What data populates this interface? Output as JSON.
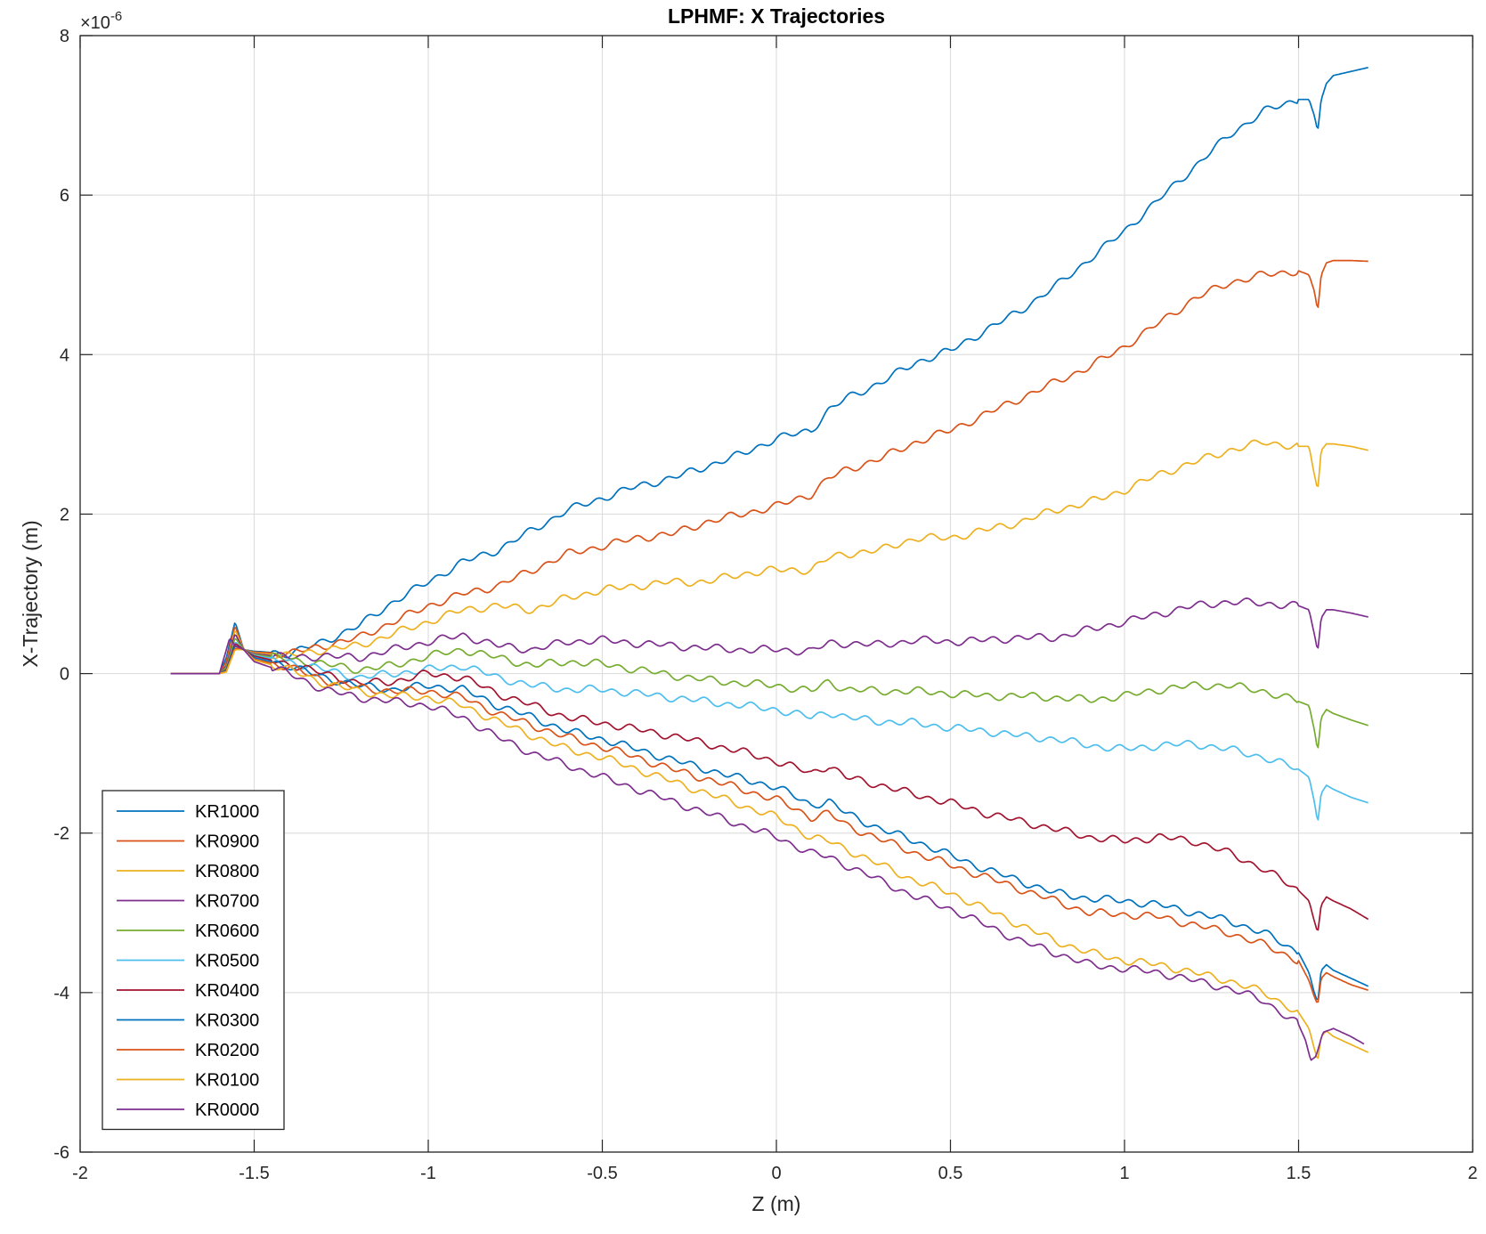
{
  "chart_data": {
    "type": "line",
    "title": "LPHMF: X Trajectories",
    "xlabel": "Z (m)",
    "ylabel": "X-Trajectory (m)",
    "y_exponent_base": "×10",
    "y_exponent_power": "-6",
    "xlim": [
      -2,
      2
    ],
    "ylim": [
      -6,
      8
    ],
    "x_ticks": [
      "-2",
      "-1.5",
      "-1",
      "-0.5",
      "0",
      "0.5",
      "1",
      "1.5",
      "2"
    ],
    "y_ticks": [
      "-6",
      "-4",
      "-2",
      "0",
      "2",
      "4",
      "6",
      "8"
    ],
    "grid": true,
    "legend_position": "bottom-left",
    "series": [
      {
        "name": "KR1000",
        "color": "#0072BD",
        "x": [
          -1.74,
          -1.6,
          -1.58,
          -1.555,
          -1.53,
          -1.5,
          -1.4,
          -1.3,
          -1.2,
          -1.1,
          -1.0,
          -0.9,
          -0.8,
          -0.7,
          -0.6,
          -0.5,
          -0.4,
          -0.3,
          -0.2,
          -0.1,
          0.0,
          0.1,
          0.15,
          0.2,
          0.3,
          0.4,
          0.5,
          0.6,
          0.7,
          0.8,
          0.9,
          1.0,
          1.1,
          1.2,
          1.3,
          1.4,
          1.5,
          1.53,
          1.545,
          1.555,
          1.565,
          1.58,
          1.6,
          1.65,
          1.7
        ],
        "y": [
          0,
          0,
          0.2,
          0.65,
          0.3,
          0.28,
          0.25,
          0.4,
          0.6,
          0.9,
          1.15,
          1.4,
          1.55,
          1.8,
          2.05,
          2.2,
          2.35,
          2.45,
          2.6,
          2.75,
          2.95,
          3.05,
          3.3,
          3.45,
          3.65,
          3.9,
          4.05,
          4.3,
          4.55,
          4.85,
          5.2,
          5.55,
          5.95,
          6.35,
          6.75,
          7.05,
          7.2,
          7.2,
          7.0,
          6.8,
          7.2,
          7.4,
          7.5,
          7.55,
          7.6
        ]
      },
      {
        "name": "KR0900",
        "color": "#D95319",
        "x": [
          -1.74,
          -1.6,
          -1.58,
          -1.555,
          -1.53,
          -1.5,
          -1.4,
          -1.3,
          -1.2,
          -1.1,
          -1.0,
          -0.9,
          -0.8,
          -0.7,
          -0.6,
          -0.5,
          -0.4,
          -0.3,
          -0.2,
          -0.1,
          0.0,
          0.1,
          0.15,
          0.2,
          0.3,
          0.4,
          0.5,
          0.6,
          0.7,
          0.8,
          0.9,
          1.0,
          1.1,
          1.2,
          1.3,
          1.4,
          1.5,
          1.53,
          1.545,
          1.555,
          1.565,
          1.58,
          1.6,
          1.65,
          1.7
        ],
        "y": [
          0,
          0,
          0.15,
          0.6,
          0.3,
          0.27,
          0.25,
          0.35,
          0.45,
          0.65,
          0.85,
          1.0,
          1.1,
          1.3,
          1.5,
          1.6,
          1.7,
          1.75,
          1.9,
          2.0,
          2.1,
          2.25,
          2.45,
          2.55,
          2.7,
          2.9,
          3.05,
          3.25,
          3.45,
          3.65,
          3.85,
          4.1,
          4.4,
          4.7,
          4.9,
          5.0,
          5.05,
          5.0,
          4.8,
          4.55,
          5.0,
          5.15,
          5.18,
          5.18,
          5.17
        ]
      },
      {
        "name": "KR0800",
        "color": "#EDB120",
        "x": [
          -1.74,
          -1.6,
          -1.58,
          -1.555,
          -1.53,
          -1.5,
          -1.4,
          -1.3,
          -1.2,
          -1.1,
          -1.0,
          -0.9,
          -0.8,
          -0.7,
          -0.6,
          -0.5,
          -0.4,
          -0.3,
          -0.2,
          -0.1,
          0.0,
          0.1,
          0.15,
          0.2,
          0.3,
          0.4,
          0.5,
          0.6,
          0.7,
          0.8,
          0.9,
          1.0,
          1.1,
          1.2,
          1.3,
          1.4,
          1.5,
          1.53,
          1.545,
          1.555,
          1.565,
          1.58,
          1.6,
          1.65,
          1.7
        ],
        "y": [
          0,
          0,
          0.1,
          0.55,
          0.3,
          0.26,
          0.22,
          0.3,
          0.35,
          0.5,
          0.65,
          0.8,
          0.85,
          0.8,
          0.95,
          1.05,
          1.1,
          1.15,
          1.15,
          1.25,
          1.3,
          1.3,
          1.45,
          1.5,
          1.55,
          1.7,
          1.7,
          1.8,
          1.9,
          2.05,
          2.15,
          2.3,
          2.5,
          2.65,
          2.8,
          2.9,
          2.85,
          2.85,
          2.5,
          2.3,
          2.8,
          2.88,
          2.88,
          2.85,
          2.8
        ]
      },
      {
        "name": "KR0700",
        "color": "#7E2F8E",
        "x": [
          -1.74,
          -1.6,
          -1.58,
          -1.555,
          -1.53,
          -1.5,
          -1.4,
          -1.3,
          -1.2,
          -1.1,
          -1.0,
          -0.9,
          -0.8,
          -0.7,
          -0.6,
          -0.5,
          -0.4,
          -0.3,
          -0.2,
          -0.1,
          0.0,
          0.1,
          0.15,
          0.2,
          0.3,
          0.4,
          0.5,
          0.6,
          0.7,
          0.8,
          0.9,
          1.0,
          1.1,
          1.2,
          1.3,
          1.4,
          1.5,
          1.53,
          1.545,
          1.555,
          1.565,
          1.58,
          1.6,
          1.65,
          1.7
        ],
        "y": [
          0,
          0,
          0.1,
          0.5,
          0.3,
          0.25,
          0.2,
          0.22,
          0.2,
          0.3,
          0.4,
          0.48,
          0.35,
          0.3,
          0.4,
          0.42,
          0.38,
          0.35,
          0.32,
          0.3,
          0.3,
          0.28,
          0.38,
          0.38,
          0.36,
          0.42,
          0.4,
          0.42,
          0.45,
          0.45,
          0.55,
          0.65,
          0.75,
          0.85,
          0.9,
          0.88,
          0.85,
          0.8,
          0.5,
          0.28,
          0.7,
          0.8,
          0.8,
          0.76,
          0.71
        ]
      },
      {
        "name": "KR0600",
        "color": "#77AC30",
        "x": [
          -1.74,
          -1.6,
          -1.58,
          -1.555,
          -1.53,
          -1.5,
          -1.4,
          -1.3,
          -1.2,
          -1.1,
          -1.0,
          -0.9,
          -0.8,
          -0.7,
          -0.6,
          -0.5,
          -0.4,
          -0.3,
          -0.2,
          -0.1,
          0.0,
          0.1,
          0.15,
          0.2,
          0.3,
          0.4,
          0.5,
          0.6,
          0.7,
          0.8,
          0.9,
          1.0,
          1.1,
          1.2,
          1.3,
          1.4,
          1.5,
          1.53,
          1.545,
          1.555,
          1.565,
          1.58,
          1.6,
          1.65,
          1.7
        ],
        "y": [
          0,
          0,
          0.08,
          0.45,
          0.3,
          0.24,
          0.18,
          0.12,
          0.05,
          0.1,
          0.22,
          0.3,
          0.2,
          0.1,
          0.15,
          0.12,
          0.05,
          -0.02,
          -0.08,
          -0.12,
          -0.15,
          -0.22,
          -0.1,
          -0.2,
          -0.22,
          -0.22,
          -0.25,
          -0.28,
          -0.28,
          -0.3,
          -0.33,
          -0.28,
          -0.2,
          -0.15,
          -0.15,
          -0.22,
          -0.35,
          -0.4,
          -0.7,
          -0.97,
          -0.55,
          -0.45,
          -0.5,
          -0.58,
          -0.65
        ]
      },
      {
        "name": "KR0500",
        "color": "#4DBEEE",
        "x": [
          -1.74,
          -1.6,
          -1.58,
          -1.555,
          -1.53,
          -1.5,
          -1.4,
          -1.3,
          -1.2,
          -1.1,
          -1.0,
          -0.9,
          -0.8,
          -0.7,
          -0.6,
          -0.5,
          -0.4,
          -0.3,
          -0.2,
          -0.1,
          0.0,
          0.1,
          0.15,
          0.2,
          0.3,
          0.4,
          0.5,
          0.6,
          0.7,
          0.8,
          0.9,
          1.0,
          1.1,
          1.2,
          1.3,
          1.4,
          1.5,
          1.53,
          1.545,
          1.555,
          1.565,
          1.58,
          1.6,
          1.65,
          1.7
        ],
        "y": [
          0,
          0,
          0.05,
          0.4,
          0.3,
          0.23,
          0.15,
          0.05,
          -0.05,
          0.0,
          0.05,
          0.1,
          -0.05,
          -0.15,
          -0.2,
          -0.2,
          -0.25,
          -0.3,
          -0.35,
          -0.4,
          -0.45,
          -0.55,
          -0.48,
          -0.55,
          -0.6,
          -0.62,
          -0.68,
          -0.72,
          -0.78,
          -0.82,
          -0.9,
          -0.95,
          -0.9,
          -0.88,
          -0.95,
          -1.05,
          -1.2,
          -1.3,
          -1.6,
          -1.87,
          -1.5,
          -1.4,
          -1.45,
          -1.55,
          -1.62
        ]
      },
      {
        "name": "KR0400",
        "color": "#A2142F",
        "x": [
          -1.74,
          -1.6,
          -1.58,
          -1.555,
          -1.53,
          -1.5,
          -1.4,
          -1.3,
          -1.2,
          -1.1,
          -1.0,
          -0.9,
          -0.8,
          -0.7,
          -0.6,
          -0.5,
          -0.4,
          -0.3,
          -0.2,
          -0.1,
          0.0,
          0.1,
          0.15,
          0.2,
          0.3,
          0.4,
          0.5,
          0.6,
          0.7,
          0.8,
          0.9,
          1.0,
          1.1,
          1.2,
          1.3,
          1.4,
          1.5,
          1.53,
          1.545,
          1.555,
          1.565,
          1.58,
          1.6,
          1.65,
          1.7
        ],
        "y": [
          0,
          0,
          0.05,
          0.38,
          0.3,
          0.22,
          0.12,
          0.0,
          -0.12,
          -0.1,
          0.0,
          -0.05,
          -0.25,
          -0.4,
          -0.55,
          -0.62,
          -0.7,
          -0.78,
          -0.88,
          -0.98,
          -1.1,
          -1.25,
          -1.15,
          -1.3,
          -1.4,
          -1.52,
          -1.62,
          -1.75,
          -1.85,
          -1.95,
          -2.05,
          -2.1,
          -2.05,
          -2.1,
          -2.25,
          -2.45,
          -2.72,
          -2.85,
          -3.1,
          -3.25,
          -2.9,
          -2.8,
          -2.85,
          -2.95,
          -3.08
        ]
      },
      {
        "name": "KR0300",
        "color": "#0072BD",
        "x": [
          -1.74,
          -1.6,
          -1.58,
          -1.555,
          -1.53,
          -1.5,
          -1.4,
          -1.3,
          -1.2,
          -1.1,
          -1.0,
          -0.9,
          -0.8,
          -0.7,
          -0.6,
          -0.5,
          -0.4,
          -0.3,
          -0.2,
          -0.1,
          0.0,
          0.1,
          0.15,
          0.2,
          0.3,
          0.4,
          0.5,
          0.6,
          0.7,
          0.8,
          0.9,
          1.0,
          1.1,
          1.2,
          1.3,
          1.4,
          1.5,
          1.53,
          1.545,
          1.555,
          1.565,
          1.58,
          1.6,
          1.65,
          1.7
        ],
        "y": [
          0,
          0,
          0.04,
          0.35,
          0.3,
          0.2,
          0.1,
          -0.05,
          -0.15,
          -0.2,
          -0.15,
          -0.2,
          -0.4,
          -0.55,
          -0.72,
          -0.82,
          -0.95,
          -1.08,
          -1.2,
          -1.32,
          -1.42,
          -1.65,
          -1.6,
          -1.75,
          -1.95,
          -2.1,
          -2.28,
          -2.45,
          -2.6,
          -2.75,
          -2.82,
          -2.85,
          -2.9,
          -3.0,
          -3.1,
          -3.25,
          -3.5,
          -3.75,
          -4.0,
          -4.12,
          -3.72,
          -3.65,
          -3.72,
          -3.82,
          -3.92
        ]
      },
      {
        "name": "KR0200",
        "color": "#D95319",
        "x": [
          -1.74,
          -1.6,
          -1.58,
          -1.555,
          -1.53,
          -1.5,
          -1.4,
          -1.3,
          -1.2,
          -1.1,
          -1.0,
          -0.9,
          -0.8,
          -0.7,
          -0.6,
          -0.5,
          -0.4,
          -0.3,
          -0.2,
          -0.1,
          0.0,
          0.1,
          0.15,
          0.2,
          0.3,
          0.4,
          0.5,
          0.6,
          0.7,
          0.8,
          0.9,
          1.0,
          1.1,
          1.2,
          1.3,
          1.4,
          1.5,
          1.53,
          1.545,
          1.555,
          1.565,
          1.58,
          1.6,
          1.65,
          1.7
        ],
        "y": [
          0,
          0,
          0.03,
          0.32,
          0.3,
          0.18,
          0.08,
          -0.08,
          -0.18,
          -0.22,
          -0.22,
          -0.3,
          -0.5,
          -0.65,
          -0.8,
          -0.92,
          -1.05,
          -1.2,
          -1.32,
          -1.45,
          -1.58,
          -1.8,
          -1.75,
          -1.9,
          -2.08,
          -2.25,
          -2.4,
          -2.55,
          -2.7,
          -2.85,
          -3.0,
          -3.02,
          -3.05,
          -3.15,
          -3.25,
          -3.4,
          -3.6,
          -3.85,
          -4.05,
          -4.15,
          -3.82,
          -3.75,
          -3.8,
          -3.9,
          -3.97
        ]
      },
      {
        "name": "KR0100",
        "color": "#EDB120",
        "x": [
          -1.74,
          -1.6,
          -1.58,
          -1.555,
          -1.53,
          -1.5,
          -1.4,
          -1.3,
          -1.2,
          -1.1,
          -1.0,
          -0.9,
          -0.8,
          -0.7,
          -0.6,
          -0.5,
          -0.4,
          -0.3,
          -0.2,
          -0.1,
          0.0,
          0.1,
          0.15,
          0.2,
          0.3,
          0.4,
          0.5,
          0.6,
          0.7,
          0.8,
          0.9,
          1.0,
          1.1,
          1.2,
          1.3,
          1.4,
          1.5,
          1.53,
          1.545,
          1.555,
          1.565,
          1.58,
          1.6,
          1.65,
          1.7
        ],
        "y": [
          0,
          0,
          0.02,
          0.3,
          0.3,
          0.17,
          0.05,
          -0.12,
          -0.22,
          -0.28,
          -0.3,
          -0.4,
          -0.6,
          -0.78,
          -0.95,
          -1.05,
          -1.2,
          -1.35,
          -1.5,
          -1.65,
          -1.8,
          -2.05,
          -2.1,
          -2.2,
          -2.4,
          -2.6,
          -2.75,
          -2.95,
          -3.15,
          -3.35,
          -3.5,
          -3.6,
          -3.65,
          -3.75,
          -3.85,
          -4.0,
          -4.25,
          -4.45,
          -4.7,
          -4.85,
          -4.55,
          -4.48,
          -4.55,
          -4.65,
          -4.75
        ]
      },
      {
        "name": "KR0000",
        "color": "#7E2F8E",
        "x": [
          -1.74,
          -1.6,
          -1.58,
          -1.57,
          -1.555,
          -1.53,
          -1.5,
          -1.4,
          -1.3,
          -1.2,
          -1.1,
          -1.0,
          -0.9,
          -0.8,
          -0.7,
          -0.6,
          -0.5,
          -0.4,
          -0.3,
          -0.2,
          -0.1,
          0.0,
          0.1,
          0.15,
          0.2,
          0.3,
          0.4,
          0.5,
          0.6,
          0.7,
          0.8,
          0.9,
          1.0,
          1.1,
          1.2,
          1.3,
          1.4,
          1.45,
          1.5,
          1.52,
          1.535,
          1.55,
          1.57,
          1.6,
          1.65,
          1.69
        ],
        "y": [
          0,
          0,
          0.3,
          0.45,
          0.35,
          0.3,
          0.15,
          0.0,
          -0.2,
          -0.3,
          -0.35,
          -0.4,
          -0.55,
          -0.8,
          -1.0,
          -1.15,
          -1.3,
          -1.45,
          -1.6,
          -1.75,
          -1.9,
          -2.05,
          -2.25,
          -2.3,
          -2.4,
          -2.6,
          -2.8,
          -2.95,
          -3.15,
          -3.35,
          -3.5,
          -3.65,
          -3.7,
          -3.75,
          -3.85,
          -3.95,
          -4.1,
          -4.25,
          -4.4,
          -4.6,
          -4.85,
          -4.8,
          -4.5,
          -4.45,
          -4.55,
          -4.65
        ]
      }
    ]
  }
}
